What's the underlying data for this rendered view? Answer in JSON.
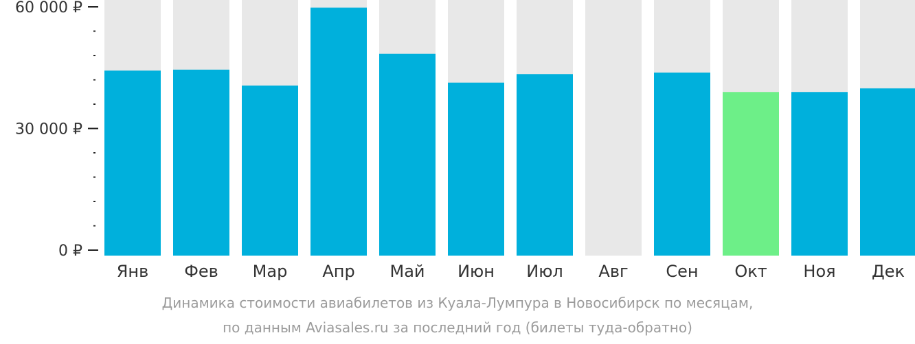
{
  "chart_data": {
    "type": "bar",
    "categories": [
      "Янв",
      "Фев",
      "Мар",
      "Апр",
      "Май",
      "Июн",
      "Июл",
      "Авг",
      "Сен",
      "Окт",
      "Ноя",
      "Дек"
    ],
    "values": [
      44300,
      44500,
      40600,
      59800,
      48400,
      41300,
      43400,
      null,
      43800,
      39000,
      39000,
      39900
    ],
    "highlight_category": "Окт",
    "ylim": [
      0,
      60000
    ],
    "yticks": [
      {
        "value": 0,
        "label": "0 ₽"
      },
      {
        "value": 30000,
        "label": "30 000 ₽"
      },
      {
        "value": 60000,
        "label": "60 000 ₽"
      }
    ],
    "minor_tick_step": 6000,
    "grid": false,
    "colors": {
      "bar": "#00b0dc",
      "highlight": "#6def88",
      "background_bar": "#e8e8e8",
      "axis": "#222222",
      "label": "#333333"
    }
  },
  "caption": {
    "line1": "Динамика стоимости авиабилетов из Куала-Лумпура в Новосибирск по месяцам,",
    "line2": "по данным Aviasales.ru за последний год (билеты туда-обратно)"
  }
}
